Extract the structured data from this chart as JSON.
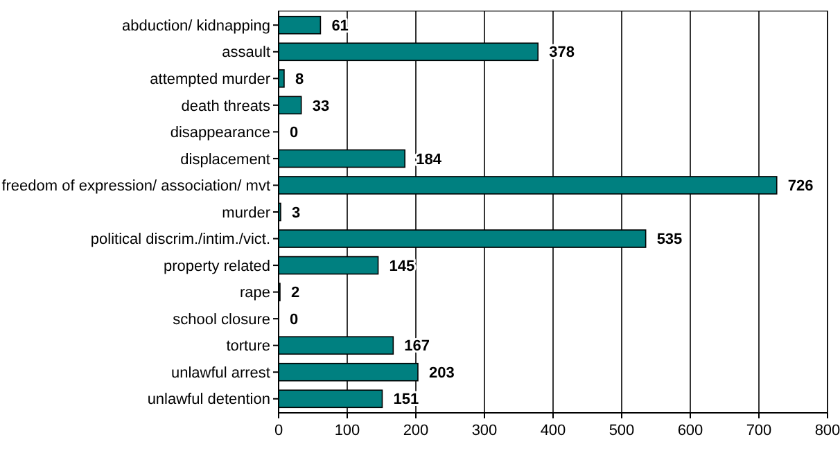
{
  "chart_data": {
    "type": "bar",
    "orientation": "horizontal",
    "categories": [
      "abduction/ kidnapping",
      "assault",
      "attempted murder",
      "death threats",
      "disappearance",
      "displacement",
      "freedom of expression/ association/ mvt",
      "murder",
      "political discrim./intim./vict.",
      "property related",
      "rape",
      "school closure",
      "torture",
      "unlawful arrest",
      "unlawful detention"
    ],
    "values": [
      61,
      378,
      8,
      33,
      0,
      184,
      726,
      3,
      535,
      145,
      2,
      0,
      167,
      203,
      151
    ],
    "color": "#008080",
    "xlim": [
      0,
      800
    ],
    "xticks": [
      0,
      100,
      200,
      300,
      400,
      500,
      600,
      700,
      800
    ],
    "grid": "x",
    "data_labels": true
  }
}
